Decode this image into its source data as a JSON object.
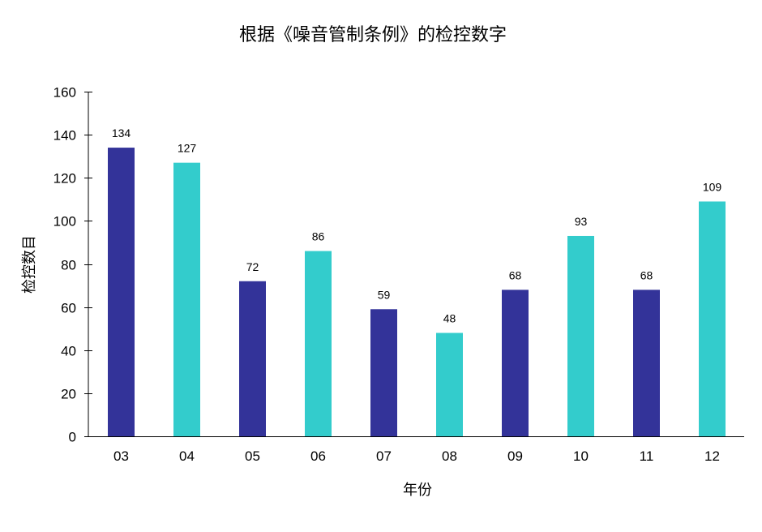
{
  "chart_data": {
    "type": "bar",
    "title": "根据《噪音管制条例》的检控数字",
    "xlabel": "年份",
    "ylabel": "检控数目",
    "categories": [
      "03",
      "04",
      "05",
      "06",
      "07",
      "08",
      "09",
      "10",
      "11",
      "12"
    ],
    "values": [
      134,
      127,
      72,
      86,
      59,
      48,
      68,
      93,
      68,
      109
    ],
    "ylim": [
      0,
      160
    ],
    "yticks": [
      0,
      20,
      40,
      60,
      80,
      100,
      120,
      140,
      160
    ],
    "grid": false,
    "legend": "none",
    "data_labels": true,
    "colors": [
      "#333399",
      "#33CCCC"
    ]
  }
}
